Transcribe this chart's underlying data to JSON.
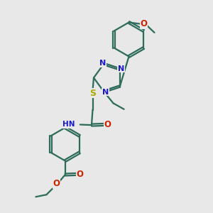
{
  "background_color": "#e8e8e8",
  "bond_color": "#2d6b5a",
  "bond_width": 1.6,
  "atom_colors": {
    "N": "#1a1acc",
    "O": "#cc2200",
    "S": "#aaaa00",
    "C": "#2d6b5a"
  },
  "font_size": 8.5,
  "fig_width": 3.0,
  "fig_height": 3.0,
  "dpi": 100,
  "xlim": [
    0,
    10
  ],
  "ylim": [
    0,
    10
  ]
}
